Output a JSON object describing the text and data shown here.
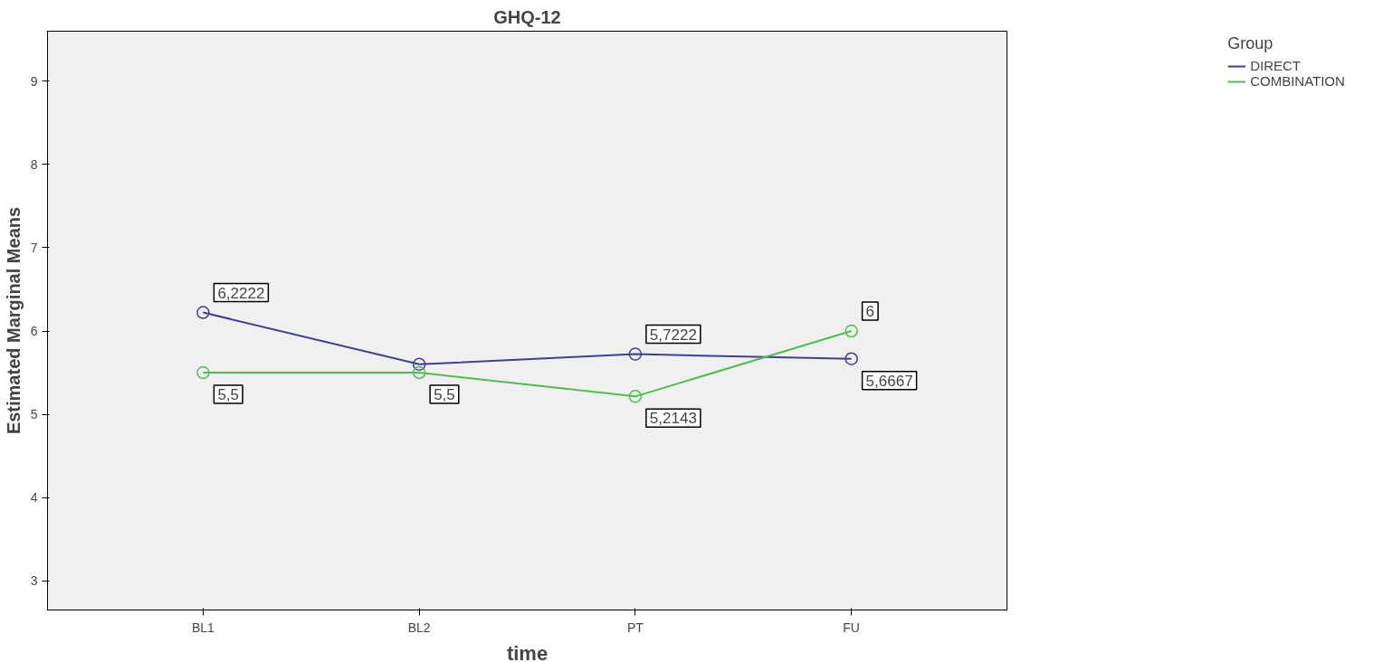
{
  "chart_data": {
    "type": "line",
    "title": "GHQ-12",
    "xlabel": "time",
    "ylabel": "Estimated Marginal Means",
    "legend_title": "Group",
    "categories": [
      "BL1",
      "BL2",
      "PT",
      "FU"
    ],
    "series": [
      {
        "name": "DIRECT",
        "color": "#3f3f9a",
        "values": [
          6.2222,
          5.6,
          5.7222,
          5.6667
        ],
        "value_labels": [
          "6,2222",
          null,
          "5,7222",
          "5,6667"
        ]
      },
      {
        "name": "COMBINATION",
        "color": "#4cc04c",
        "values": [
          5.5,
          5.5,
          5.2143,
          6
        ],
        "value_labels": [
          "5,5",
          "5,5",
          "5,2143",
          "6"
        ]
      }
    ],
    "ylim": [
      2.65,
      9.6
    ],
    "yticks": [
      3,
      4,
      5,
      6,
      7,
      8,
      9
    ],
    "grid": false,
    "legend": "top right",
    "marker": "circle",
    "line_style": "solid"
  }
}
